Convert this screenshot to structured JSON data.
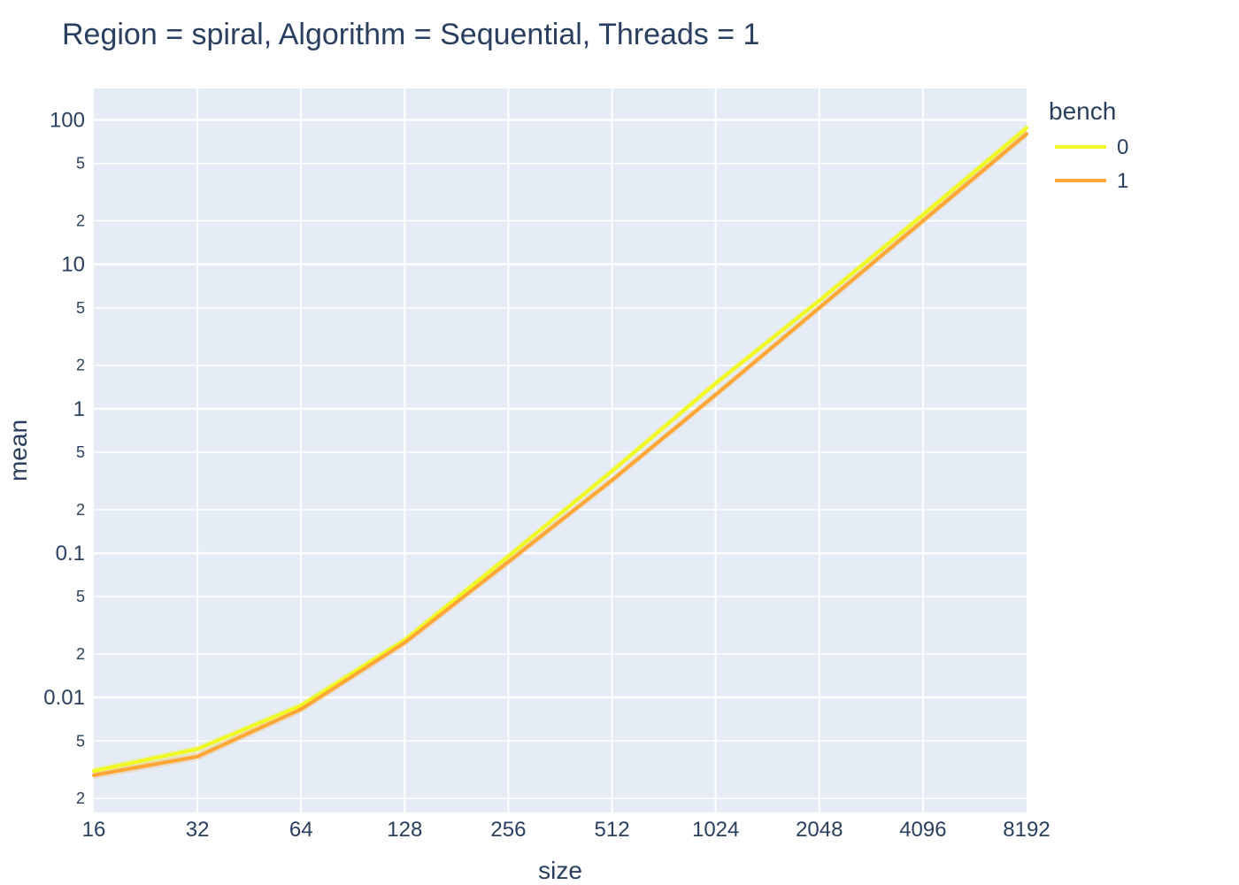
{
  "chart_data": {
    "type": "line",
    "title": "Region = spiral, Algorithm = Sequential, Threads = 1",
    "xlabel": "size",
    "ylabel": "mean",
    "x_scale": "log2",
    "y_scale": "log10",
    "x": [
      16,
      32,
      64,
      128,
      256,
      512,
      1024,
      2048,
      4096,
      8192
    ],
    "x_tick_labels": [
      "16",
      "32",
      "64",
      "128",
      "256",
      "512",
      "1024",
      "2048",
      "4096",
      "8192"
    ],
    "y_major_ticks": [
      {
        "value": 0.01,
        "label": "0.01"
      },
      {
        "value": 0.1,
        "label": "0.1"
      },
      {
        "value": 1,
        "label": "1"
      },
      {
        "value": 10,
        "label": "10"
      },
      {
        "value": 100,
        "label": "100"
      }
    ],
    "y_minor_ticks": [
      {
        "value": 0.002,
        "label": "2"
      },
      {
        "value": 0.005,
        "label": "5"
      },
      {
        "value": 0.02,
        "label": "2"
      },
      {
        "value": 0.05,
        "label": "5"
      },
      {
        "value": 0.2,
        "label": "2"
      },
      {
        "value": 0.5,
        "label": "5"
      },
      {
        "value": 2,
        "label": "2"
      },
      {
        "value": 5,
        "label": "5"
      },
      {
        "value": 20,
        "label": "2"
      },
      {
        "value": 50,
        "label": "5"
      }
    ],
    "ylim": [
      0.0016,
      165
    ],
    "legend_title": "bench",
    "legend_position": "right",
    "grid": true,
    "series": [
      {
        "name": "0",
        "color": "#f0f921",
        "values": [
          0.0031,
          0.0044,
          0.0088,
          0.025,
          0.095,
          0.37,
          1.5,
          5.6,
          22,
          88
        ],
        "band_color": "rgba(240,249,33,0.25)"
      },
      {
        "name": "1",
        "color": "#fca636",
        "values": [
          0.0029,
          0.0039,
          0.0083,
          0.024,
          0.087,
          0.32,
          1.25,
          5.0,
          20,
          80
        ],
        "band_color": "rgba(252,166,54,0.25)"
      }
    ]
  },
  "colors": {
    "plot_background": "#e5ecf6",
    "grid": "#ffffff",
    "text": "#2a3f5f"
  }
}
